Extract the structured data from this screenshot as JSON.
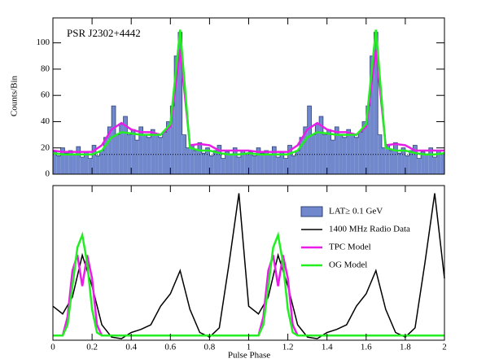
{
  "chart_data": [
    {
      "type": "histogram",
      "name": "LAT≥ 0.1 GeV",
      "annotation": "PSR J2302+4442",
      "ylabel": "Counts/Bin",
      "color": "#7189cc",
      "bins": [
        0,
        0.02,
        0.04,
        0.06,
        0.08,
        0.1,
        0.12,
        0.14,
        0.16,
        0.18,
        0.2,
        0.22,
        0.24,
        0.26,
        0.28,
        0.3,
        0.32,
        0.34,
        0.36,
        0.38,
        0.4,
        0.42,
        0.44,
        0.46,
        0.48,
        0.5,
        0.52,
        0.54,
        0.56,
        0.58,
        0.6,
        0.62,
        0.64,
        0.66,
        0.68,
        0.7,
        0.72,
        0.74,
        0.76,
        0.78,
        0.8,
        0.82,
        0.84,
        0.86,
        0.88,
        0.9,
        0.92,
        0.94,
        0.96,
        0.98,
        1,
        1.02,
        1.04,
        1.06,
        1.08,
        1.1,
        1.12,
        1.14,
        1.16,
        1.18,
        1.2,
        1.22,
        1.24,
        1.26,
        1.28,
        1.3,
        1.32,
        1.34,
        1.36,
        1.38,
        1.4,
        1.42,
        1.44,
        1.46,
        1.48,
        1.5,
        1.52,
        1.54,
        1.56,
        1.58,
        1.6,
        1.62,
        1.64,
        1.66,
        1.68,
        1.7,
        1.72,
        1.74,
        1.76,
        1.78,
        1.8,
        1.82,
        1.84,
        1.86,
        1.88,
        1.9,
        1.92,
        1.94,
        1.96,
        1.98,
        2
      ],
      "values": [
        17,
        14,
        20,
        16,
        18,
        15,
        21,
        13,
        17,
        12,
        22,
        14,
        18,
        28,
        36,
        52,
        30,
        38,
        44,
        30,
        34,
        26,
        36,
        30,
        28,
        34,
        30,
        28,
        32,
        40,
        52,
        90,
        108,
        30,
        20,
        22,
        18,
        24,
        16,
        20,
        14,
        18,
        22,
        12,
        17,
        15,
        20,
        13,
        18,
        16,
        17,
        14,
        20,
        16,
        18,
        15,
        21,
        13,
        17,
        12,
        22,
        14,
        18,
        28,
        36,
        52,
        30,
        38,
        44,
        30,
        34,
        26,
        36,
        30,
        28,
        34,
        30,
        28,
        32,
        40,
        52,
        90,
        108,
        30,
        20,
        22,
        18,
        24,
        16,
        20,
        14,
        18,
        22,
        12,
        17,
        15,
        20,
        13,
        18,
        16
      ],
      "background": 15,
      "series": [
        {
          "name": "TPC Model",
          "color": "#e81de8",
          "x": [
            0,
            0.05,
            0.1,
            0.15,
            0.2,
            0.25,
            0.3,
            0.35,
            0.4,
            0.45,
            0.5,
            0.55,
            0.6,
            0.65,
            0.7,
            0.75,
            0.8,
            0.85,
            0.9,
            0.95,
            1,
            1.05,
            1.1,
            1.15,
            1.2,
            1.25,
            1.3,
            1.35,
            1.4,
            1.45,
            1.5,
            1.55,
            1.6,
            1.65,
            1.7,
            1.75,
            1.8,
            1.85,
            1.9,
            1.95,
            2
          ],
          "values": [
            18,
            17,
            17,
            17,
            17,
            22,
            34,
            39,
            34,
            32,
            32,
            30,
            36,
            95,
            22,
            23,
            22,
            18,
            18,
            18,
            18,
            17,
            17,
            17,
            17,
            22,
            34,
            39,
            34,
            32,
            32,
            30,
            36,
            95,
            22,
            23,
            22,
            18,
            18,
            18,
            18
          ]
        },
        {
          "name": "OG Model",
          "color": "#22ee22",
          "x": [
            0,
            0.05,
            0.1,
            0.15,
            0.2,
            0.25,
            0.3,
            0.35,
            0.4,
            0.45,
            0.5,
            0.55,
            0.6,
            0.65,
            0.7,
            0.75,
            0.8,
            0.85,
            0.9,
            0.95,
            1,
            1.05,
            1.1,
            1.15,
            1.2,
            1.25,
            1.3,
            1.35,
            1.4,
            1.45,
            1.5,
            1.55,
            1.6,
            1.65,
            1.7,
            1.75,
            1.8,
            1.85,
            1.9,
            1.95,
            2
          ],
          "values": [
            16,
            15,
            15,
            15,
            15,
            18,
            28,
            32,
            31,
            30,
            30,
            30,
            38,
            110,
            20,
            18,
            18,
            16,
            15,
            15,
            16,
            15,
            15,
            15,
            15,
            18,
            28,
            32,
            31,
            30,
            30,
            30,
            38,
            110,
            20,
            18,
            18,
            16,
            15,
            15,
            16
          ]
        }
      ],
      "xlim": [
        0,
        2
      ],
      "xticks": [
        0,
        0.2,
        0.4,
        0.6,
        0.8,
        1,
        1.2,
        1.4,
        1.6,
        1.8,
        2
      ],
      "ylim": [
        0,
        119
      ],
      "yticks": [
        0,
        20,
        40,
        60,
        80,
        100
      ]
    },
    {
      "type": "line",
      "xlabel": "Pulse Phase",
      "legend": "upper right",
      "series": [
        {
          "name": "1400 MHz Radio Data",
          "color": "#000000",
          "x": [
            0,
            0.05,
            0.1,
            0.15,
            0.2,
            0.25,
            0.3,
            0.35,
            0.4,
            0.45,
            0.5,
            0.55,
            0.6,
            0.65,
            0.7,
            0.75,
            0.8,
            0.85,
            0.9,
            0.95,
            1,
            1.05,
            1.1,
            1.15,
            1.2,
            1.25,
            1.3,
            1.35,
            1.4,
            1.45,
            1.5,
            1.55,
            1.6,
            1.65,
            1.7,
            1.75,
            1.8,
            1.85,
            1.9,
            1.95,
            2
          ],
          "values": [
            0.22,
            0.17,
            0.28,
            0.55,
            0.35,
            0.1,
            0.02,
            0.01,
            0.05,
            0.07,
            0.1,
            0.22,
            0.3,
            0.45,
            0.2,
            0.05,
            0.02,
            0.08,
            0.5,
            0.95,
            0.22,
            0.17,
            0.28,
            0.55,
            0.35,
            0.1,
            0.02,
            0.01,
            0.05,
            0.07,
            0.1,
            0.22,
            0.3,
            0.45,
            0.2,
            0.05,
            0.02,
            0.08,
            0.5,
            0.95,
            0.4
          ]
        },
        {
          "name": "TPC Model",
          "color": "#e81de8",
          "x": [
            0,
            0.05,
            0.075,
            0.1,
            0.125,
            0.15,
            0.175,
            0.2,
            0.225,
            0.25,
            0.3,
            1,
            1.05,
            1.075,
            1.1,
            1.125,
            1.15,
            1.175,
            1.2,
            1.225,
            1.25,
            1.3,
            2
          ],
          "values": [
            0.03,
            0.03,
            0.15,
            0.45,
            0.55,
            0.35,
            0.55,
            0.4,
            0.1,
            0.03,
            0.03,
            0.03,
            0.03,
            0.15,
            0.45,
            0.55,
            0.35,
            0.55,
            0.4,
            0.1,
            0.03,
            0.03,
            0.03
          ]
        },
        {
          "name": "OG Model",
          "color": "#22ee22",
          "x": [
            0,
            0.05,
            0.075,
            0.1,
            0.125,
            0.15,
            0.175,
            0.2,
            0.225,
            0.25,
            0.3,
            1,
            1.05,
            1.075,
            1.1,
            1.125,
            1.15,
            1.175,
            1.2,
            1.225,
            1.25,
            1.3,
            2
          ],
          "values": [
            0.03,
            0.03,
            0.1,
            0.35,
            0.6,
            0.68,
            0.5,
            0.2,
            0.05,
            0.03,
            0.03,
            0.03,
            0.03,
            0.1,
            0.35,
            0.6,
            0.68,
            0.5,
            0.2,
            0.05,
            0.03,
            0.03,
            0.03
          ]
        }
      ],
      "xlim": [
        0,
        2
      ],
      "xticks": [
        0,
        0.2,
        0.4,
        0.6,
        0.8,
        1,
        1.2,
        1.4,
        1.6,
        1.8,
        2
      ],
      "ylim": [
        0,
        1
      ]
    }
  ]
}
